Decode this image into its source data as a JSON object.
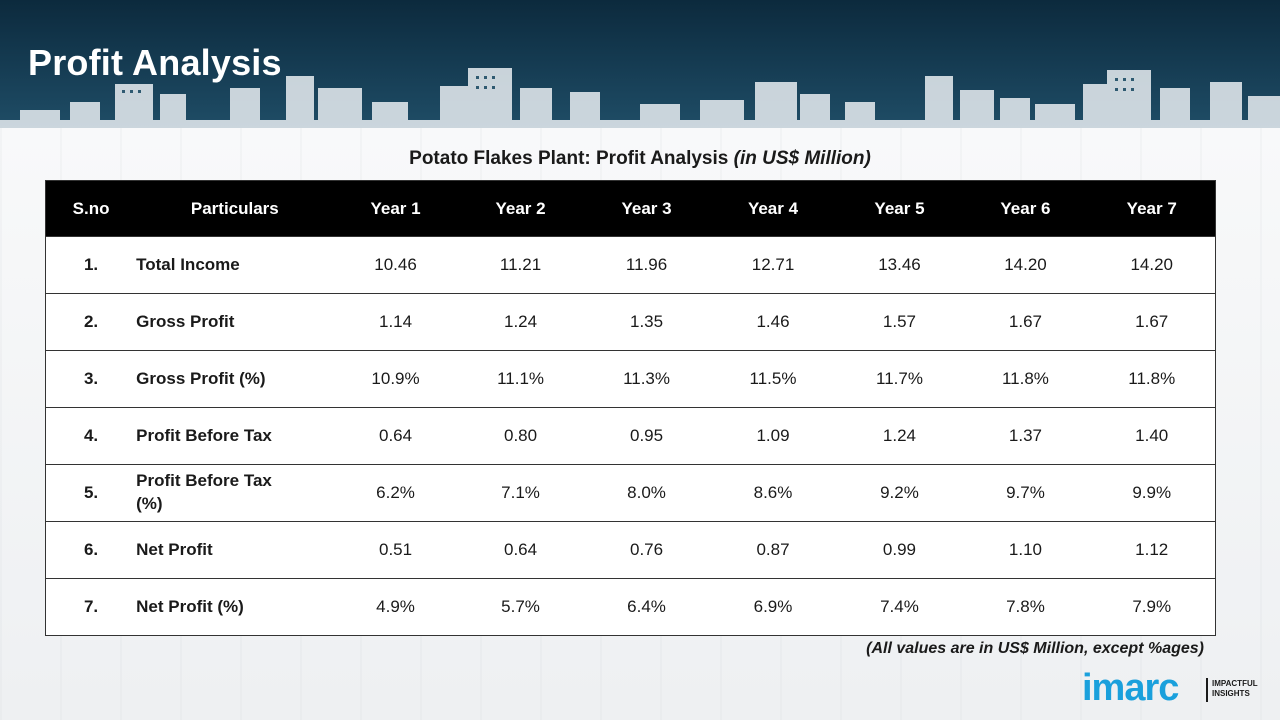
{
  "page": {
    "title": "Profit Analysis"
  },
  "table": {
    "title_main": "Potato Flakes Plant: Profit Analysis ",
    "title_unit": "(in US$ Million)",
    "headers": [
      "S.no",
      "Particulars",
      "Year 1",
      "Year 2",
      "Year 3",
      "Year 4",
      "Year 5",
      "Year 6",
      "Year 7"
    ],
    "rows": [
      {
        "sno": "1.",
        "particular": "Total Income",
        "values": [
          "10.46",
          "11.21",
          "11.96",
          "12.71",
          "13.46",
          "14.20",
          "14.20"
        ]
      },
      {
        "sno": "2.",
        "particular": "Gross Profit",
        "values": [
          "1.14",
          "1.24",
          "1.35",
          "1.46",
          "1.57",
          "1.67",
          "1.67"
        ]
      },
      {
        "sno": "3.",
        "particular": "Gross Profit (%)",
        "values": [
          "10.9%",
          "11.1%",
          "11.3%",
          "11.5%",
          "11.7%",
          "11.8%",
          "11.8%"
        ]
      },
      {
        "sno": "4.",
        "particular": "Profit Before Tax",
        "values": [
          "0.64",
          "0.80",
          "0.95",
          "1.09",
          "1.24",
          "1.37",
          "1.40"
        ]
      },
      {
        "sno": "5.",
        "particular": "Profit Before Tax (%)",
        "values": [
          "6.2%",
          "7.1%",
          "8.0%",
          "8.6%",
          "9.2%",
          "9.7%",
          "9.9%"
        ]
      },
      {
        "sno": "6.",
        "particular": "Net Profit",
        "values": [
          "0.51",
          "0.64",
          "0.76",
          "0.87",
          "0.99",
          "1.10",
          "1.12"
        ]
      },
      {
        "sno": "7.",
        "particular": "Net Profit (%)",
        "values": [
          "4.9%",
          "5.7%",
          "6.4%",
          "6.9%",
          "7.4%",
          "7.8%",
          "7.9%"
        ]
      }
    ],
    "footnote": "(All values are in US$ Million, except %ages)"
  },
  "logo": {
    "word": "imarc",
    "tagline_1": "IMPACTFUL",
    "tagline_2": "INSIGHTS",
    "color": "#1aa0dc"
  },
  "colors": {
    "header_bg": "#163d54",
    "table_header_bg": "#000000"
  }
}
